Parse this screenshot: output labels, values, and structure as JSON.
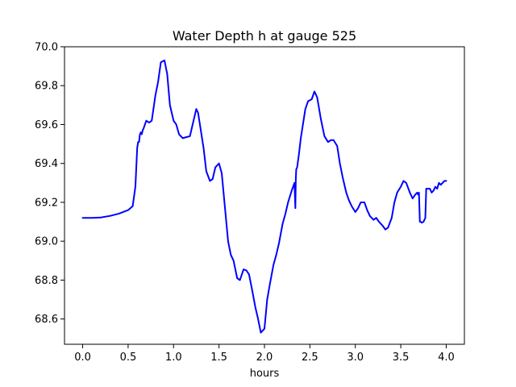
{
  "chart_data": {
    "type": "line",
    "title": "Water Depth h at gauge 525",
    "xlabel": "hours",
    "ylabel": "",
    "xlim": [
      -0.2,
      4.2
    ],
    "ylim": [
      68.47,
      70.0
    ],
    "x_ticks": [
      0.0,
      0.5,
      1.0,
      1.5,
      2.0,
      2.5,
      3.0,
      3.5,
      4.0
    ],
    "x_tick_labels": [
      "0.0",
      "0.5",
      "1.0",
      "1.5",
      "2.0",
      "2.5",
      "3.0",
      "3.5",
      "4.0"
    ],
    "y_ticks": [
      68.6,
      68.8,
      69.0,
      69.2,
      69.4,
      69.6,
      69.8,
      70.0
    ],
    "y_tick_labels": [
      "68.6",
      "68.8",
      "69.0",
      "69.2",
      "69.4",
      "69.6",
      "69.8",
      "70.0"
    ],
    "grid": false,
    "colors": {
      "series": "#0000ff"
    },
    "series": [
      {
        "x": [
          0.0,
          0.1,
          0.2,
          0.3,
          0.4,
          0.5,
          0.55,
          0.58,
          0.6,
          0.61,
          0.62,
          0.63,
          0.64,
          0.65,
          0.66,
          0.67,
          0.7,
          0.73,
          0.76,
          0.8,
          0.83,
          0.86,
          0.9,
          0.93,
          0.96,
          1.0,
          1.03,
          1.06,
          1.1,
          1.14,
          1.18,
          1.22,
          1.25,
          1.27,
          1.3,
          1.33,
          1.36,
          1.4,
          1.43,
          1.46,
          1.5,
          1.53,
          1.56,
          1.6,
          1.63,
          1.66,
          1.7,
          1.73,
          1.77,
          1.8,
          1.83,
          1.86,
          1.9,
          1.93,
          1.96,
          2.0,
          2.03,
          2.06,
          2.1,
          2.13,
          2.16,
          2.2,
          2.23,
          2.26,
          2.3,
          2.33,
          2.34,
          2.345,
          2.35,
          2.36,
          2.38,
          2.4,
          2.42,
          2.45,
          2.48,
          2.52,
          2.55,
          2.58,
          2.62,
          2.66,
          2.7,
          2.73,
          2.76,
          2.8,
          2.83,
          2.86,
          2.9,
          2.93,
          2.96,
          3.0,
          3.03,
          3.06,
          3.1,
          3.13,
          3.16,
          3.2,
          3.23,
          3.26,
          3.3,
          3.33,
          3.36,
          3.4,
          3.43,
          3.46,
          3.5,
          3.53,
          3.56,
          3.6,
          3.63,
          3.66,
          3.68,
          3.69,
          3.7,
          3.71,
          3.72,
          3.73,
          3.75,
          3.77,
          3.78,
          3.79,
          3.8,
          3.82,
          3.84,
          3.86,
          3.88,
          3.9,
          3.92,
          3.94,
          3.96,
          3.98,
          4.0
        ],
        "y": [
          69.12,
          69.12,
          69.122,
          69.13,
          69.142,
          69.16,
          69.18,
          69.28,
          69.48,
          69.51,
          69.51,
          69.55,
          69.56,
          69.55,
          69.57,
          69.58,
          69.62,
          69.61,
          69.62,
          69.75,
          69.82,
          69.92,
          69.93,
          69.86,
          69.7,
          69.62,
          69.6,
          69.55,
          69.53,
          69.535,
          69.54,
          69.62,
          69.68,
          69.66,
          69.57,
          69.48,
          69.36,
          69.31,
          69.32,
          69.38,
          69.4,
          69.35,
          69.2,
          69.0,
          68.93,
          68.9,
          68.81,
          68.8,
          68.855,
          68.85,
          68.83,
          68.76,
          68.66,
          68.6,
          68.53,
          68.55,
          68.7,
          68.78,
          68.88,
          68.93,
          68.99,
          69.09,
          69.14,
          69.2,
          69.26,
          69.3,
          69.17,
          69.32,
          69.37,
          69.38,
          69.45,
          69.53,
          69.59,
          69.68,
          69.72,
          69.73,
          69.77,
          69.74,
          69.63,
          69.54,
          69.51,
          69.52,
          69.52,
          69.49,
          69.4,
          69.33,
          69.25,
          69.21,
          69.18,
          69.15,
          69.17,
          69.2,
          69.2,
          69.16,
          69.13,
          69.11,
          69.12,
          69.1,
          69.08,
          69.06,
          69.07,
          69.12,
          69.2,
          69.25,
          69.28,
          69.31,
          69.3,
          69.25,
          69.22,
          69.24,
          69.25,
          69.24,
          69.25,
          69.1,
          69.1,
          69.095,
          69.1,
          69.12,
          69.27,
          69.27,
          69.27,
          69.27,
          69.25,
          69.26,
          69.28,
          69.27,
          69.3,
          69.29,
          69.3,
          69.31,
          69.31
        ]
      }
    ]
  }
}
